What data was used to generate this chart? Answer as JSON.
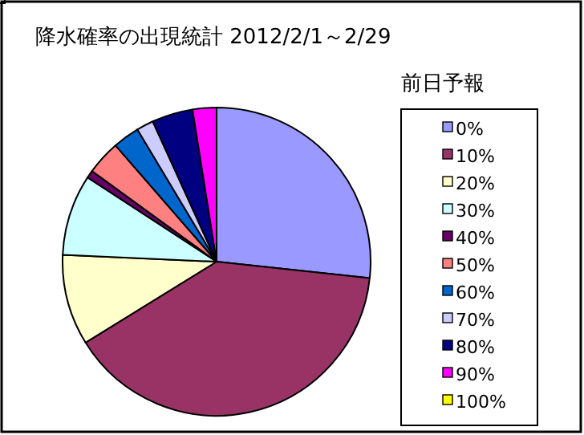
{
  "chart_data": {
    "type": "pie",
    "title": "降水確率の出現統計 2012/2/1～2/29",
    "legend_title": "前日予報",
    "legend": "right",
    "categories": [
      "0%",
      "10%",
      "20%",
      "30%",
      "40%",
      "50%",
      "60%",
      "70%",
      "80%",
      "90%",
      "100%"
    ],
    "values": [
      26.7,
      39.5,
      9.5,
      8.5,
      0.8,
      3.6,
      2.8,
      1.8,
      4.3,
      2.5,
      0
    ],
    "colors": [
      "#9999ff",
      "#993366",
      "#ffffcc",
      "#ccffff",
      "#660066",
      "#ff8080",
      "#0066cc",
      "#ccccff",
      "#000080",
      "#ff00ff",
      "#ffff00"
    ]
  }
}
